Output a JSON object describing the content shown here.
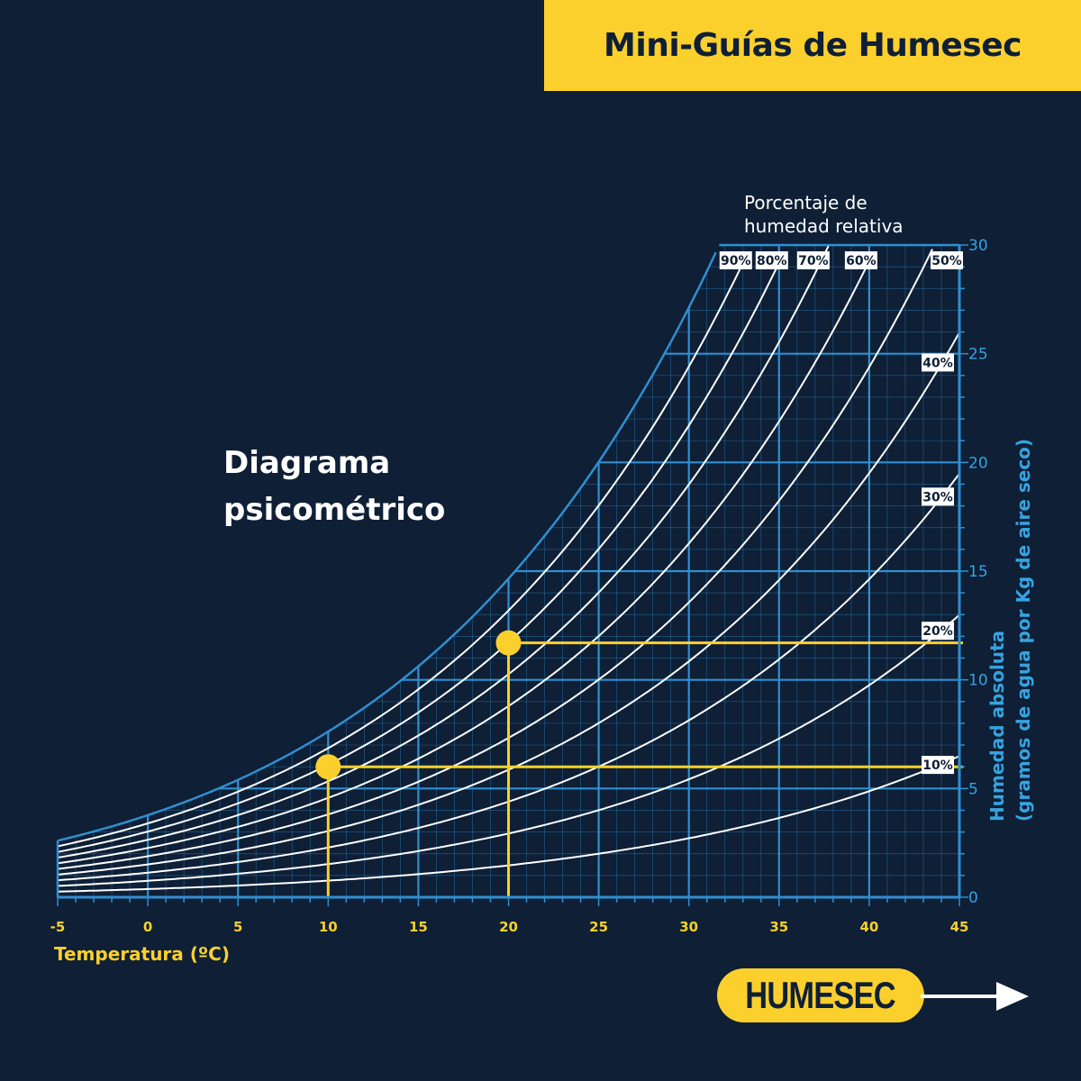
{
  "banner": {
    "title": "Mini-Guías de Humesec"
  },
  "diagram_title": {
    "line1": "Diagrama",
    "line2": "psicométrico"
  },
  "logo": {
    "text": "HUMESEC"
  },
  "colors": {
    "background": "#0e1f36",
    "accent": "#fbd02d",
    "grid": "#2f8fd0",
    "curves": "#ffffff",
    "axis_text": "#36a3e0"
  },
  "chart_data": {
    "type": "line",
    "title": "Diagrama psicométrico",
    "xlabel": "Temperatura (ºC)",
    "ylabel_line1": "Humedad absoluta",
    "ylabel_line2": "(gramos de agua por Kg de aire seco)",
    "rh_label_line1": "Porcentaje de",
    "rh_label_line2": "humedad relativa",
    "xlim": [
      -5,
      45
    ],
    "ylim": [
      0,
      30
    ],
    "x_ticks": [
      "-5",
      "0",
      "5",
      "10",
      "15",
      "20",
      "25",
      "30",
      "35",
      "40",
      "45"
    ],
    "y_ticks": [
      "0",
      "5",
      "10",
      "15",
      "20",
      "25",
      "30"
    ],
    "grid": true,
    "series": [
      {
        "name": "100%",
        "rh": 100
      },
      {
        "name": "90%",
        "rh": 90
      },
      {
        "name": "80%",
        "rh": 80
      },
      {
        "name": "70%",
        "rh": 70
      },
      {
        "name": "60%",
        "rh": 60
      },
      {
        "name": "50%",
        "rh": 50
      },
      {
        "name": "40%",
        "rh": 40
      },
      {
        "name": "30%",
        "rh": 30
      },
      {
        "name": "20%",
        "rh": 20
      },
      {
        "name": "10%",
        "rh": 10
      }
    ],
    "highlight_points": [
      {
        "x": 10,
        "y": 6
      },
      {
        "x": 20,
        "y": 11.7
      }
    ]
  }
}
